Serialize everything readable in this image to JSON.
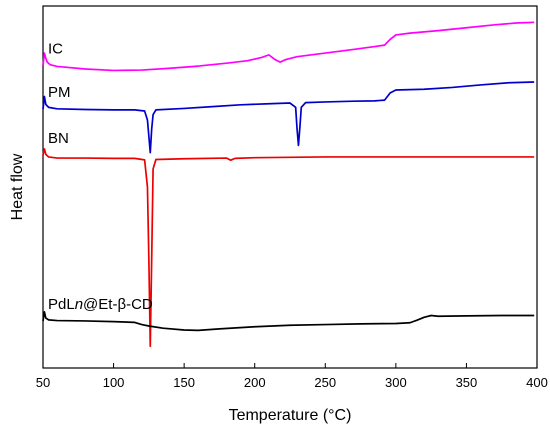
{
  "chart_data": {
    "type": "line",
    "xlabel": "Temperature (°C)",
    "ylabel": "Heat flow",
    "xlim": [
      50,
      400
    ],
    "xticks": [
      50,
      100,
      150,
      200,
      250,
      300,
      350,
      400
    ],
    "yticks_shown": false,
    "grid": false,
    "legend": "none",
    "series": [
      {
        "name": "IC",
        "name_parts": [
          "IC",
          ""
        ],
        "color": "#ff00ff",
        "x": [
          50,
          51,
          52,
          53,
          55,
          60,
          80,
          100,
          120,
          140,
          160,
          180,
          195,
          205,
          210,
          214,
          218,
          222,
          230,
          250,
          270,
          285,
          292,
          296,
          300,
          310,
          330,
          350,
          370,
          385,
          398
        ],
        "y": [
          0.835,
          0.87,
          0.855,
          0.845,
          0.838,
          0.833,
          0.826,
          0.822,
          0.823,
          0.828,
          0.834,
          0.842,
          0.849,
          0.858,
          0.865,
          0.853,
          0.845,
          0.852,
          0.86,
          0.87,
          0.88,
          0.888,
          0.892,
          0.908,
          0.92,
          0.925,
          0.932,
          0.94,
          0.948,
          0.953,
          0.955
        ]
      },
      {
        "name": "PM",
        "name_parts": [
          "PM",
          ""
        ],
        "color": "#0000cc",
        "x": [
          50,
          51,
          52,
          54,
          60,
          80,
          100,
          115,
          122,
          124,
          125,
          126,
          127,
          128,
          130,
          150,
          170,
          190,
          210,
          225,
          229,
          230,
          231,
          232,
          233,
          236,
          250,
          270,
          285,
          292,
          296,
          300,
          320,
          340,
          360,
          380,
          398
        ],
        "y": [
          0.715,
          0.75,
          0.728,
          0.72,
          0.716,
          0.714,
          0.713,
          0.713,
          0.71,
          0.685,
          0.64,
          0.595,
          0.66,
          0.7,
          0.713,
          0.717,
          0.722,
          0.727,
          0.73,
          0.732,
          0.72,
          0.66,
          0.615,
          0.665,
          0.72,
          0.733,
          0.735,
          0.737,
          0.738,
          0.74,
          0.76,
          0.768,
          0.77,
          0.775,
          0.782,
          0.788,
          0.79
        ]
      },
      {
        "name": "BN",
        "name_parts": [
          "BN",
          ""
        ],
        "color": "#ee0000",
        "x": [
          50,
          51,
          52,
          54,
          60,
          80,
          100,
          115,
          122,
          124,
          125,
          126,
          127,
          128,
          130,
          150,
          180,
          183,
          186,
          200,
          250,
          300,
          350,
          398
        ],
        "y": [
          0.588,
          0.605,
          0.59,
          0.583,
          0.58,
          0.58,
          0.579,
          0.579,
          0.575,
          0.5,
          0.3,
          0.06,
          0.3,
          0.55,
          0.576,
          0.578,
          0.58,
          0.574,
          0.579,
          0.581,
          0.583,
          0.583,
          0.583,
          0.583
        ]
      },
      {
        "name": "PdLn@Et-β-CD",
        "name_parts": [
          "PdL",
          "n",
          "@Et-β-CD"
        ],
        "color": "#000000",
        "x": [
          50,
          51,
          52,
          54,
          60,
          80,
          100,
          115,
          120,
          125,
          135,
          150,
          160,
          175,
          200,
          225,
          250,
          275,
          300,
          310,
          315,
          320,
          325,
          330,
          350,
          375,
          398
        ],
        "y": [
          0.13,
          0.155,
          0.138,
          0.133,
          0.131,
          0.13,
          0.128,
          0.126,
          0.12,
          0.116,
          0.11,
          0.105,
          0.104,
          0.108,
          0.114,
          0.118,
          0.12,
          0.122,
          0.123,
          0.125,
          0.132,
          0.14,
          0.145,
          0.143,
          0.144,
          0.145,
          0.145
        ]
      }
    ]
  }
}
